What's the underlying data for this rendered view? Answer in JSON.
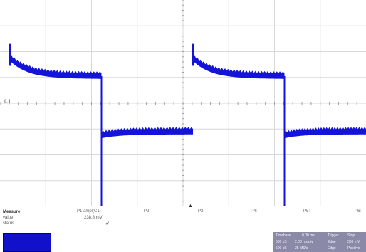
{
  "screen": {
    "channel_marker": "C1",
    "trigger_marker": "▲",
    "grid": {
      "divisions_x": 8,
      "divisions_y": 8
    },
    "trace_color": "#1414d8",
    "background_color": "#ffffff",
    "grid_color": "#d8d8d8"
  },
  "waveform": {
    "periods": 2,
    "high_level_div": 1.45,
    "high_tail_div": 1.05,
    "low_level_div": -1.25,
    "low_tail_div": -1.1,
    "spike_peak_div": 2.3,
    "spike_dip_div": -4.6,
    "noise_band_div": 0.18
  },
  "measure": {
    "header": "Measure",
    "row_value": "value",
    "row_status": "status",
    "p1_label": "P1:ampl(C1)",
    "p1_value": "238.8 mV",
    "p1_status": "✔",
    "params": [
      "P2:---",
      "P3:---",
      "P4:---",
      "P5:---",
      "P6:---"
    ]
  },
  "status": {
    "timebase_label": "Timebase",
    "timebase_value": "0.00 ms",
    "timebase_div": "2.00 ms/div",
    "trigger_label": "Trigger",
    "trigger_mode": "Stop",
    "trigger_level": "306 mV",
    "sample_count": "500 kS",
    "sample_rate": "25 MS/s",
    "edge_label": "Edge",
    "edge_polarity": "Positive",
    "thumb_color": "#1111cc"
  }
}
